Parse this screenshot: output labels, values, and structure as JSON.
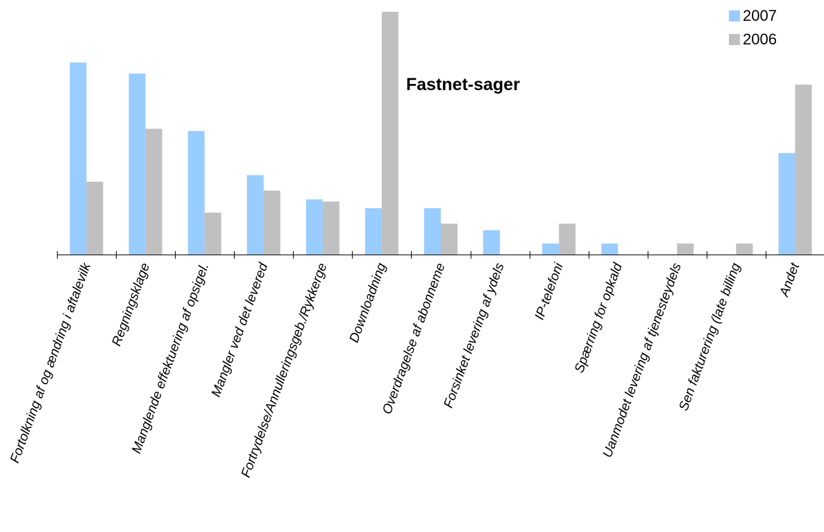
{
  "chart_data": {
    "type": "bar",
    "title": "Fastnet-sager",
    "xlabel": "",
    "ylabel": "",
    "ylim": [
      0,
      110
    ],
    "grid": false,
    "legend_position": "top-right",
    "categories": [
      "Fortolkning af og ændring i aftalevilk",
      "Regningsklage",
      "Manglende effektuering af opsigel.",
      "Mangler ved det levered",
      "Fortrydelse/Annulleringsgeb./Rykkerge",
      "Downloadning",
      "Overdragelse af abonneme",
      "Forsinket levering af ydels",
      "IP-telefoni",
      "Spærring for opkald",
      "Uanmodet levering af tjenesteydels",
      "Sen fakturering (late billing",
      "Andet"
    ],
    "series": [
      {
        "name": "2007",
        "color": "#99ccff",
        "values": [
          87,
          82,
          56,
          36,
          25,
          21,
          21,
          11,
          5,
          5,
          0,
          0,
          46
        ]
      },
      {
        "name": "2006",
        "color": "#c0c0c0",
        "values": [
          33,
          57,
          19,
          29,
          24,
          110,
          14,
          0,
          14,
          0,
          5,
          5,
          77
        ]
      }
    ]
  }
}
